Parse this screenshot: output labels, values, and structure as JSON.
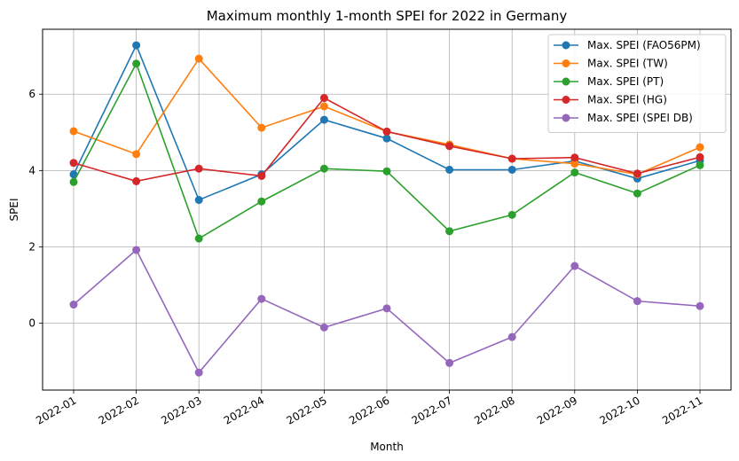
{
  "chart_data": {
    "type": "line",
    "title": "Maximum monthly 1-month SPEI for 2022 in Germany",
    "xlabel": "Month",
    "ylabel": "SPEI",
    "categories": [
      "2022-01",
      "2022-02",
      "2022-03",
      "2022-04",
      "2022-05",
      "2022-06",
      "2022-07",
      "2022-08",
      "2022-09",
      "2022-10",
      "2022-11"
    ],
    "ylim": [
      -1.75,
      7.7
    ],
    "yticks": [
      "0",
      "2",
      "4",
      "6"
    ],
    "grid": true,
    "legend_position": "top-right",
    "series": [
      {
        "name": "Max. SPEI (FAO56PM)",
        "color": "#1f77b4",
        "values": [
          3.9,
          7.28,
          3.23,
          3.9,
          5.33,
          4.84,
          4.02,
          4.02,
          4.25,
          3.79,
          4.26
        ]
      },
      {
        "name": "Max. SPEI (TW)",
        "color": "#ff7f0e",
        "values": [
          5.03,
          4.43,
          6.93,
          5.12,
          5.68,
          5.02,
          4.68,
          4.31,
          4.18,
          3.9,
          4.61
        ]
      },
      {
        "name": "Max. SPEI (PT)",
        "color": "#2ca02c",
        "values": [
          3.7,
          6.8,
          2.22,
          3.19,
          4.05,
          3.98,
          2.41,
          2.84,
          3.95,
          3.4,
          4.14
        ]
      },
      {
        "name": "Max. SPEI (HG)",
        "color": "#d62728",
        "values": [
          4.2,
          3.72,
          4.05,
          3.86,
          5.9,
          5.02,
          4.64,
          4.31,
          4.34,
          3.92,
          4.35
        ]
      },
      {
        "name": "Max. SPEI (SPEI DB)",
        "color": "#9467bd",
        "values": [
          0.49,
          1.92,
          -1.29,
          0.64,
          -0.11,
          0.39,
          -1.04,
          -0.36,
          1.5,
          0.58,
          0.45
        ]
      }
    ]
  }
}
